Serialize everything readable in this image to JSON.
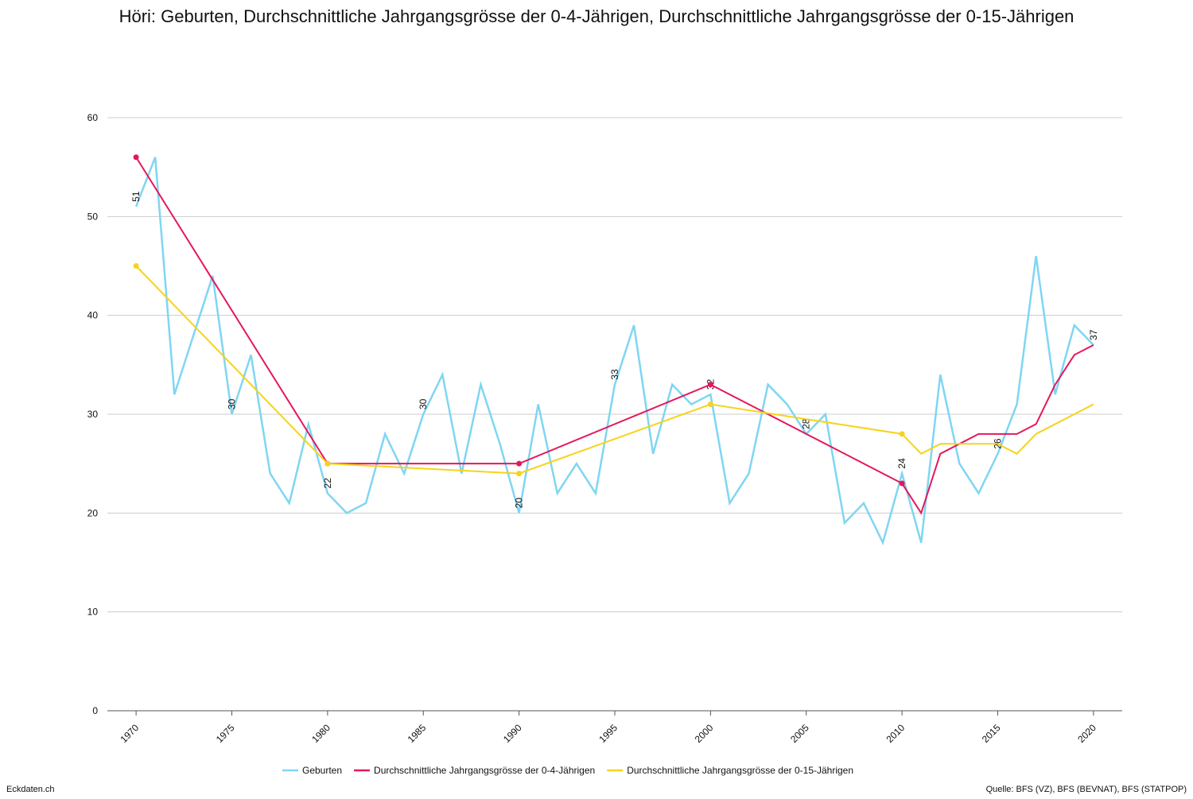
{
  "chart_data": {
    "type": "line",
    "title": "Höri: Geburten, Durchschnittliche Jahrgangsgrösse der 0-4-Jährigen, Durchschnittliche Jahrgangsgrösse der 0-15-Jährigen",
    "series": [
      {
        "name": "Geburten",
        "color": "#7fd6f2",
        "x": [
          1970,
          1971,
          1972,
          1973,
          1974,
          1975,
          1976,
          1977,
          1978,
          1979,
          1980,
          1981,
          1982,
          1983,
          1984,
          1985,
          1986,
          1987,
          1988,
          1989,
          1990,
          1991,
          1992,
          1993,
          1994,
          1995,
          1996,
          1997,
          1998,
          1999,
          2000,
          2001,
          2002,
          2003,
          2004,
          2005,
          2006,
          2007,
          2008,
          2009,
          2010,
          2011,
          2012,
          2013,
          2014,
          2015,
          2016,
          2017,
          2018,
          2019,
          2020
        ],
        "values": [
          51,
          56,
          32,
          38,
          44,
          30,
          36,
          24,
          21,
          29,
          22,
          20,
          21,
          28,
          24,
          30,
          34,
          24,
          33,
          27,
          20,
          31,
          22,
          25,
          22,
          33,
          39,
          26,
          33,
          31,
          32,
          21,
          24,
          33,
          31,
          28,
          30,
          19,
          21,
          17,
          24,
          17,
          34,
          25,
          22,
          26,
          31,
          46,
          32,
          39,
          37
        ]
      },
      {
        "name": "Durchschnittliche Jahrgangsgrösse der 0-4-Jährigen",
        "color": "#e5175c",
        "x": [
          1970,
          1980,
          1990,
          2000,
          2010,
          2011,
          2012,
          2013,
          2014,
          2015,
          2016,
          2017,
          2018,
          2019,
          2020
        ],
        "values": [
          56,
          25,
          25,
          33,
          23,
          20,
          26,
          27,
          28,
          28,
          28,
          29,
          33,
          36,
          37
        ]
      },
      {
        "name": "Durchschnittliche Jahrgangsgrösse der 0-15-Jährigen",
        "color": "#f7d31a",
        "x": [
          1970,
          1980,
          1990,
          2000,
          2010,
          2011,
          2012,
          2013,
          2014,
          2015,
          2016,
          2017,
          2018,
          2019,
          2020
        ],
        "values": [
          45,
          25,
          24,
          31,
          28,
          26,
          27,
          27,
          27,
          27,
          26,
          28,
          29,
          30,
          31
        ]
      }
    ],
    "xlim": [
      1968.5,
      2021.5
    ],
    "xticks": [
      1970,
      1975,
      1980,
      1985,
      1990,
      1995,
      2000,
      2005,
      2010,
      2015,
      2020
    ],
    "ylim": [
      0,
      60
    ],
    "yticks": [
      0,
      10,
      20,
      30,
      40,
      50,
      60
    ],
    "grid": true,
    "footer_left": "Eckdaten.ch",
    "footer_right": "Quelle: BFS (VZ), BFS (BEVNAT), BFS (STATPOP)"
  }
}
